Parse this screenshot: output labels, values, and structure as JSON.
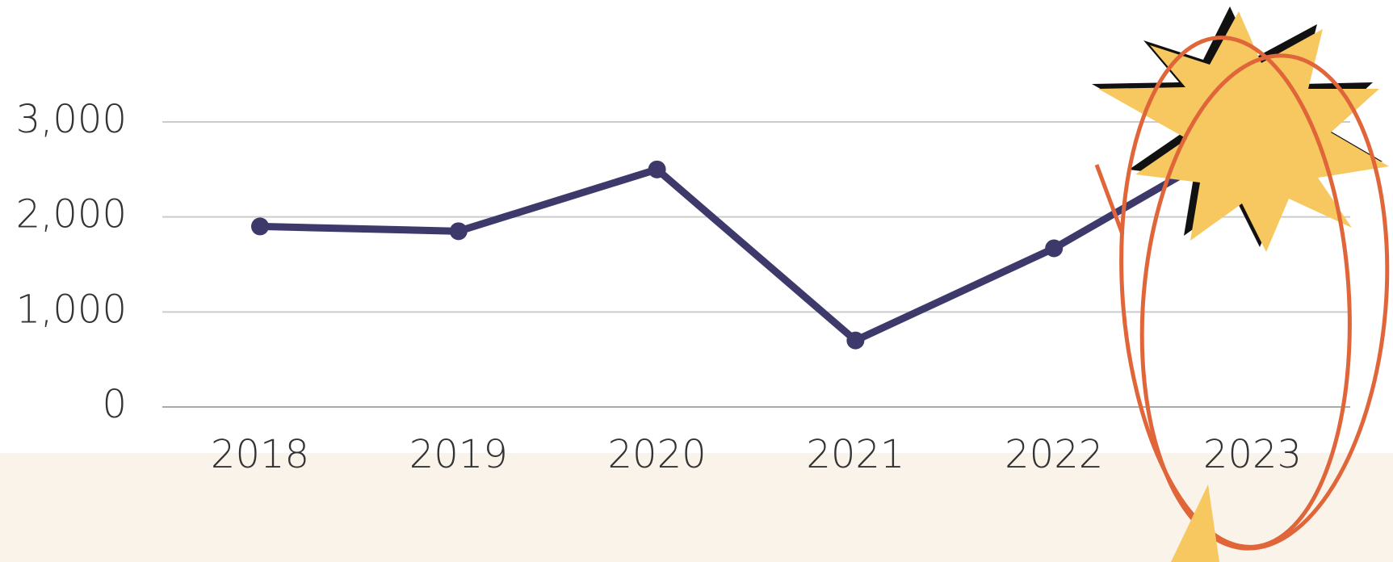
{
  "chart_data": {
    "type": "line",
    "categories": [
      "2018",
      "2019",
      "2020",
      "2021",
      "2022",
      "2023"
    ],
    "values": [
      1900,
      1850,
      2500,
      700,
      1670,
      2870
    ],
    "color": "#3d3a6b",
    "ylim": [
      0,
      3000
    ],
    "yticks": [
      0,
      {
        "value": 1000,
        "label": "1,000"
      },
      {
        "value": 2000,
        "label": "2,000"
      },
      {
        "value": 3000,
        "label": "3,000"
      }
    ],
    "grid": true
  }
}
